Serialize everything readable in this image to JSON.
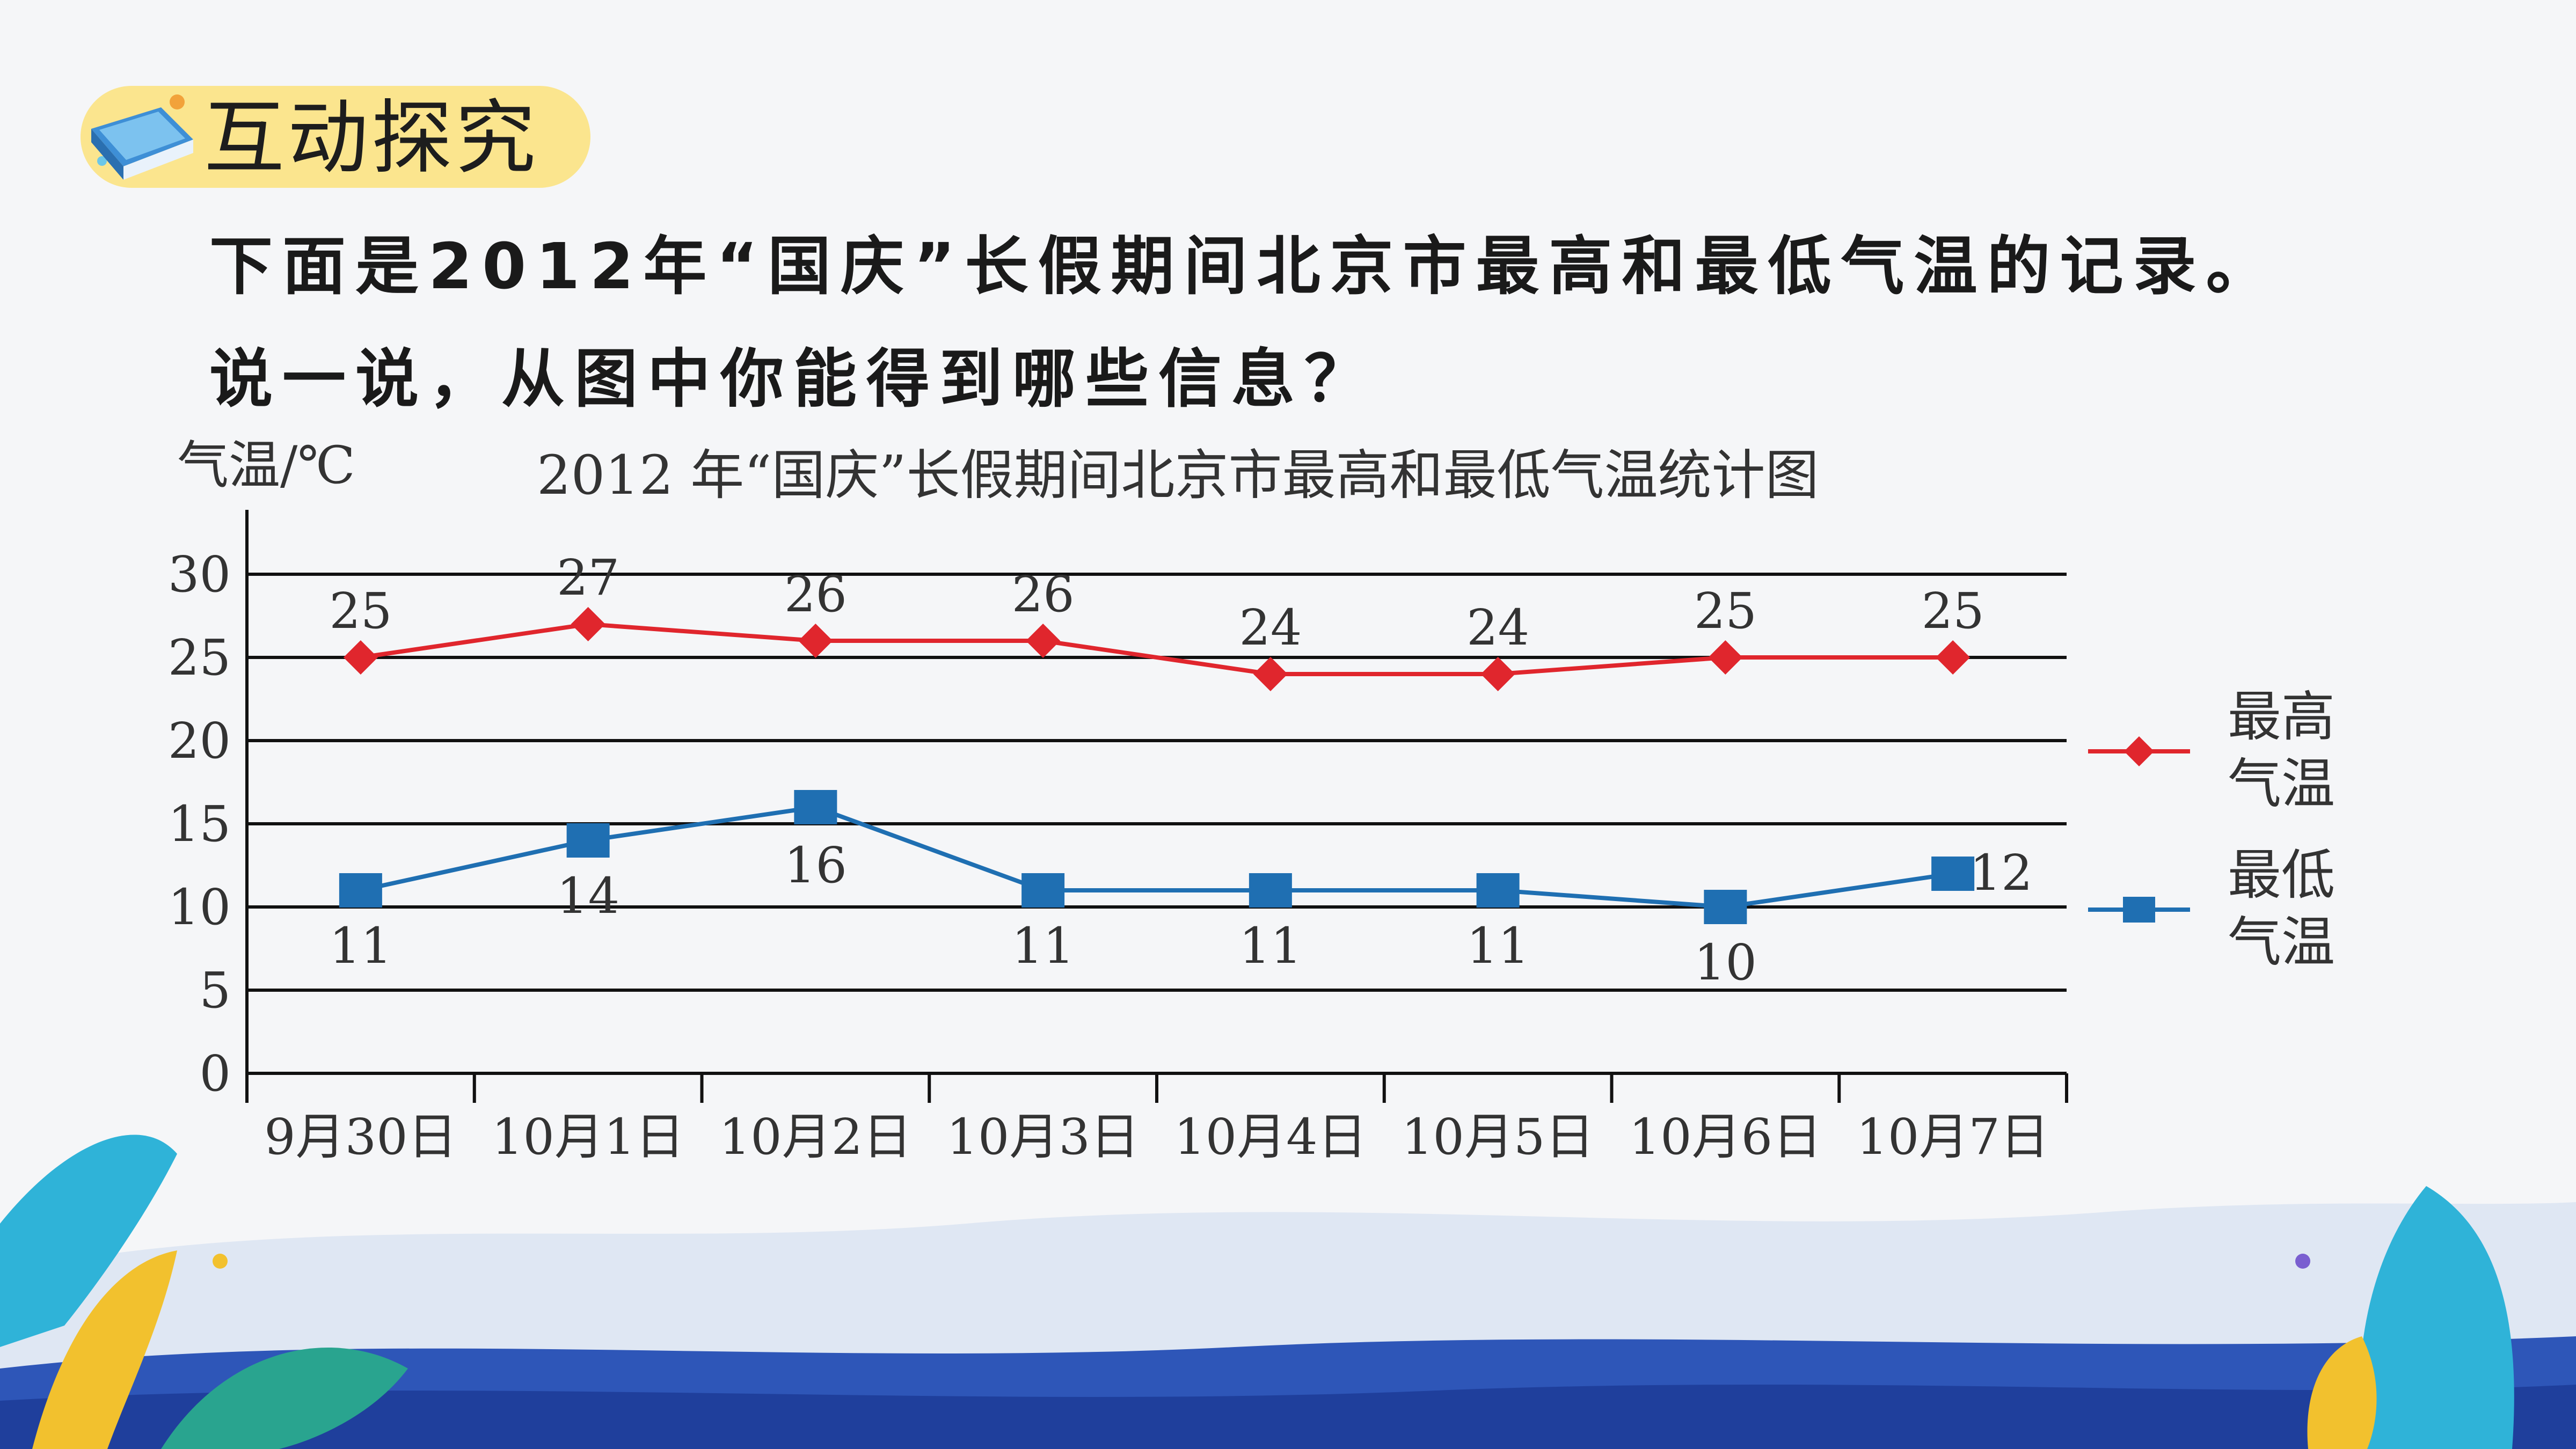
{
  "header": {
    "badge_title": "互动探究",
    "icon": "book-icon"
  },
  "instructions": {
    "line1": "下面是2012年“国庆”长假期间北京市最高和最低气温的记录。",
    "line2": "说一说，从图中你能得到哪些信息？"
  },
  "colors": {
    "badge": "#fbe58e",
    "high_series": "#e0262d",
    "low_series": "#1f6fb2",
    "grid": "#111111"
  },
  "chart_data": {
    "type": "line",
    "title": "2012 年“国庆”长假期间北京市最高和最低气温统计图",
    "ylabel": "气温/℃",
    "xlabel": "",
    "ylim": [
      0,
      30
    ],
    "yticks": [
      "0",
      "5",
      "10",
      "15",
      "20",
      "25",
      "30"
    ],
    "grid": true,
    "legend_position": "right",
    "categories": [
      "9月30日",
      "10月1日",
      "10月2日",
      "10月3日",
      "10月4日",
      "10月5日",
      "10月6日",
      "10月7日"
    ],
    "series": [
      {
        "name": "最高气温",
        "legend_lines": [
          "最高",
          "气温"
        ],
        "marker": "diamond",
        "values": [
          25,
          27,
          26,
          26,
          24,
          24,
          25,
          25
        ],
        "labels": [
          "25",
          "27",
          "26",
          "26",
          "24",
          "24",
          "25",
          "25"
        ]
      },
      {
        "name": "最低气温",
        "legend_lines": [
          "最低",
          "气温"
        ],
        "marker": "square",
        "values": [
          11,
          14,
          16,
          11,
          11,
          11,
          10,
          12
        ],
        "labels": [
          "11",
          "14",
          "16",
          "11",
          "11",
          "11",
          "10",
          "12"
        ]
      }
    ]
  }
}
